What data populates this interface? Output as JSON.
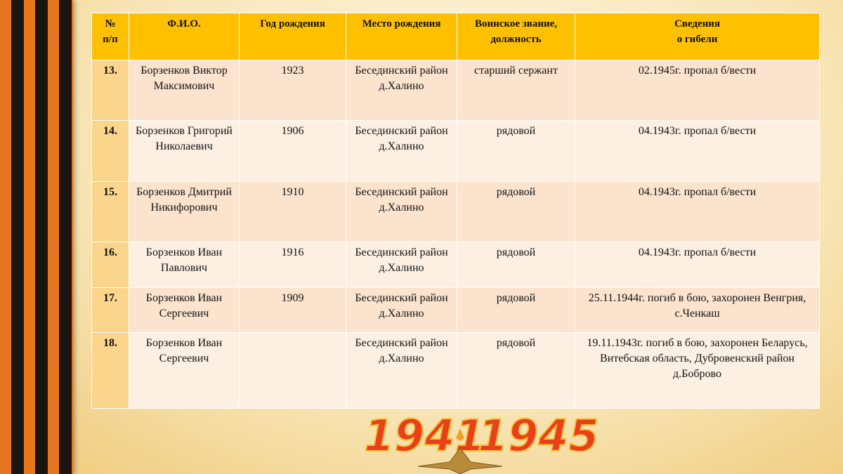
{
  "table": {
    "header": [
      "№\nп/п",
      "Ф.И.О.",
      "Год рождения",
      "Место рождения",
      "Воинское звание,\nдолжность",
      "Сведения\nо гибели"
    ],
    "rows": [
      [
        "13.",
        "Борзенков Виктор Максимович",
        "1923",
        "Бесединский район д.Халино",
        "старший сержант",
        "02.1945г. пропал б/вести"
      ],
      [
        "14.",
        "Борзенков Григорий Николаевич",
        "1906",
        "Бесединский район д.Халино",
        "рядовой",
        "04.1943г.  пропал б/вести"
      ],
      [
        "15.",
        "Борзенков Дмитрий Никифорович",
        "1910",
        "Бесединский район д.Халино",
        "рядовой",
        "04.1943г.  пропал б/вести"
      ],
      [
        "16.",
        "Борзенков Иван Павлович",
        "1916",
        "Бесединский район д.Халино",
        "рядовой",
        "04.1943г.  пропал б/вести"
      ],
      [
        "17.",
        "Борзенков Иван Сергеевич",
        "1909",
        "Бесединский район д.Халино",
        "рядовой",
        "25.11.1944г. погиб в бою, захоронен Венгрия, с.Ченкаш"
      ],
      [
        "18.",
        "Борзенков Иван Сергеевич",
        null,
        "Бесединский район д.Халино",
        "рядовой",
        "19.11.1943г. погиб в бою, захоронен Беларусь, Витебская область, Дубровенский район д.Боброво"
      ]
    ]
  },
  "emblem": {
    "start_year": "1941",
    "end_year": "1945"
  }
}
